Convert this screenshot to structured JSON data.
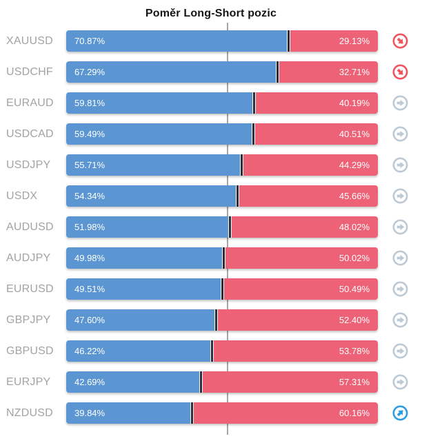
{
  "title": "Poměr Long-Short pozic",
  "colors": {
    "long_bar": "#5b96d3",
    "short_bar": "#ed6277",
    "bar_divider": "#2e2d3a",
    "pair_label": "#a3a3a3",
    "center_gridline": "#a5a5a5",
    "trend_down": "#f0545f",
    "trend_flat": "#bdc9d4",
    "trend_up": "#2d9ce3"
  },
  "chart_data": {
    "type": "bar",
    "orientation": "horizontal-stacked",
    "title": "Poměr Long-Short pozic",
    "xlim": [
      0,
      100
    ],
    "centerline_at": 50,
    "grid": "single-center-line",
    "legend": "none",
    "unit": "%",
    "categories": [
      "XAUUSD",
      "USDCHF",
      "EURAUD",
      "USDCAD",
      "USDJPY",
      "USDX",
      "AUDUSD",
      "AUDJPY",
      "EURUSD",
      "GBPJPY",
      "GBPUSD",
      "EURJPY",
      "NZDUSD"
    ],
    "series": [
      {
        "name": "Long",
        "values": [
          70.87,
          67.29,
          59.81,
          59.49,
          55.71,
          54.34,
          51.98,
          49.98,
          49.51,
          47.6,
          46.22,
          42.69,
          39.84
        ]
      },
      {
        "name": "Short",
        "values": [
          29.13,
          32.71,
          40.19,
          40.51,
          44.29,
          45.66,
          48.02,
          50.02,
          50.49,
          52.4,
          53.78,
          57.31,
          60.16
        ]
      }
    ],
    "trend_icons": [
      "down-right",
      "down-right",
      "right",
      "right",
      "right",
      "right",
      "right",
      "right",
      "right",
      "right",
      "right",
      "right",
      "up-right"
    ]
  }
}
